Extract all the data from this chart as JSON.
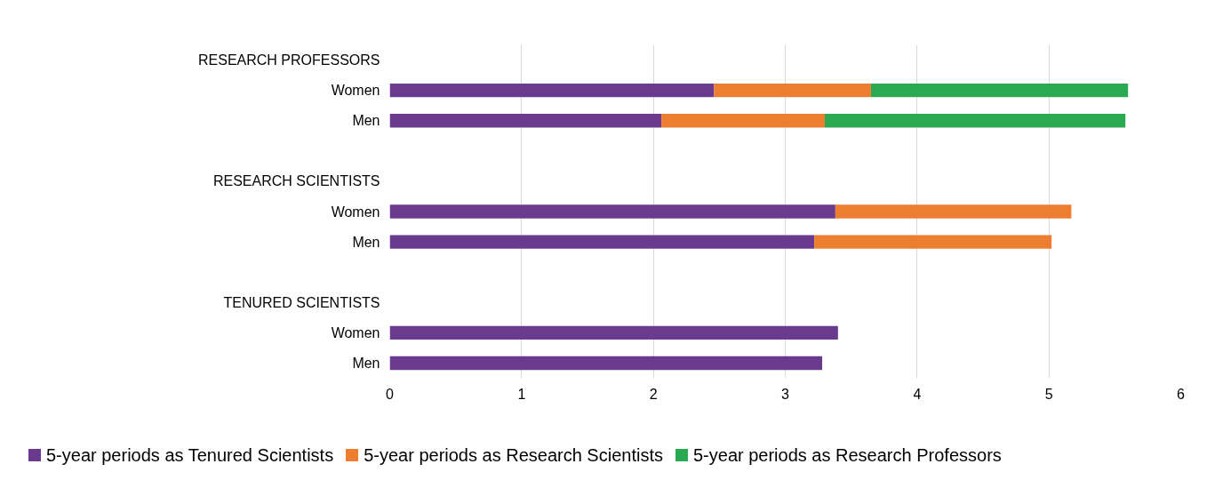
{
  "chart_data": {
    "type": "bar",
    "orientation": "horizontal",
    "stacked": true,
    "categories": [
      "RESEARCH PROFESSORS",
      "Women",
      "Men",
      null,
      "RESEARCH SCIENTISTS",
      "Women",
      "Men",
      null,
      "TENURED SCIENTISTS",
      "Women",
      "Men"
    ],
    "series": [
      {
        "name": "5-year periods as Tenured Scientists",
        "color": "#6a3a8e",
        "values": [
          null,
          2.46,
          2.06,
          null,
          null,
          3.38,
          3.22,
          null,
          null,
          3.4,
          3.28
        ]
      },
      {
        "name": "5-year periods as Research Scientists",
        "color": "#ed7d31",
        "values": [
          null,
          1.19,
          1.24,
          null,
          null,
          1.79,
          1.8,
          null,
          null,
          null,
          null
        ]
      },
      {
        "name": "5-year periods as Research Professors",
        "color": "#2aa952",
        "values": [
          null,
          1.95,
          2.28,
          null,
          null,
          null,
          null,
          null,
          null,
          null,
          null
        ]
      }
    ],
    "xlim": [
      0,
      6
    ],
    "xticks": [
      0,
      1,
      2,
      3,
      4,
      5,
      6
    ],
    "grid": "x",
    "legend": "bottom"
  }
}
